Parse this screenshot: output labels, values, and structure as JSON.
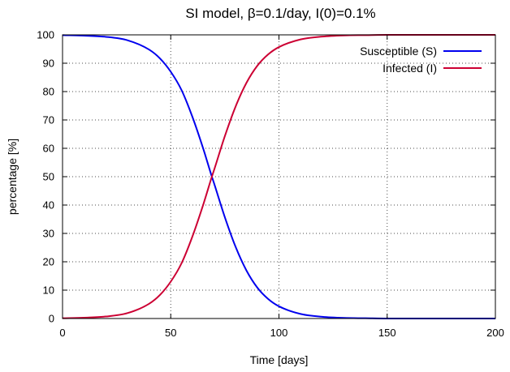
{
  "chart_data": {
    "type": "line",
    "title": "SI model, β=0.1/day, I(0)=0.1%",
    "xlabel": "Time [days]",
    "ylabel": "percentage [%]",
    "xlim": [
      0,
      200
    ],
    "ylim": [
      0,
      100
    ],
    "xticks": [
      0,
      50,
      100,
      150,
      200
    ],
    "yticks": [
      0,
      10,
      20,
      30,
      40,
      50,
      60,
      70,
      80,
      90,
      100
    ],
    "grid": true,
    "legend_position": "top-right",
    "series": [
      {
        "name": "Susceptible (S)",
        "color": "#0000ee",
        "x": [
          0,
          10,
          20,
          30,
          40,
          45,
          50,
          55,
          60,
          65,
          69,
          70,
          75,
          80,
          85,
          90,
          95,
          100,
          110,
          120,
          130,
          140,
          150,
          200
        ],
        "y": [
          99.9,
          99.7,
          99.3,
          98.1,
          94.8,
          91.7,
          87.0,
          80.5,
          71.1,
          59.9,
          50.0,
          47.7,
          35.7,
          25.2,
          16.9,
          10.9,
          6.9,
          4.3,
          1.6,
          0.6,
          0.2,
          0.1,
          0.0,
          0.0
        ]
      },
      {
        "name": "Infected (I)",
        "color": "#cc0033",
        "x": [
          0,
          10,
          20,
          30,
          40,
          45,
          50,
          55,
          60,
          65,
          69,
          70,
          75,
          80,
          85,
          90,
          95,
          100,
          110,
          120,
          130,
          140,
          150,
          200
        ],
        "y": [
          0.1,
          0.3,
          0.7,
          1.9,
          5.2,
          8.3,
          13.0,
          19.5,
          28.9,
          40.1,
          50.0,
          52.3,
          64.3,
          74.8,
          83.1,
          89.1,
          93.1,
          95.7,
          98.4,
          99.4,
          99.8,
          99.9,
          100.0,
          100.0
        ]
      }
    ]
  }
}
